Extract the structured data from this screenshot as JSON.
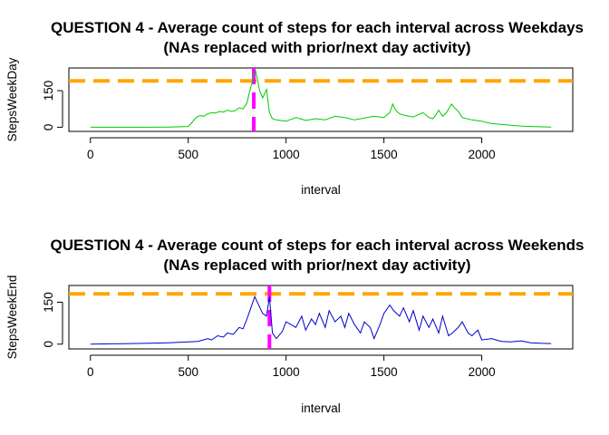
{
  "chart_data": [
    {
      "type": "line",
      "title": "QUESTION 4 - Average count of steps for each interval across Weekdays",
      "subtitle": "(NAs replaced with prior/next day activity)",
      "xlabel": "interval",
      "ylabel": "StepsWeekDay",
      "xlim": [
        -110,
        2465
      ],
      "ylim": [
        -17,
        243
      ],
      "xticks": [
        0,
        500,
        1000,
        1500,
        2000
      ],
      "yticks": [
        0,
        150
      ],
      "xtick_labels": [
        "0",
        "500",
        "1000",
        "1500",
        "2000"
      ],
      "ytick_labels": [
        "0",
        "150"
      ],
      "series_color": "#00cc00",
      "series": [
        {
          "x": [
            0,
            100,
            200,
            300,
            400,
            500,
            520,
            540,
            560,
            580,
            600,
            620,
            640,
            660,
            680,
            700,
            720,
            740,
            760,
            780,
            800,
            815,
            825,
            835,
            845,
            855,
            865,
            880,
            900,
            915,
            930,
            950,
            1000,
            1050,
            1100,
            1150,
            1200,
            1250,
            1300,
            1350,
            1400,
            1450,
            1500,
            1530,
            1545,
            1560,
            1580,
            1600,
            1650,
            1700,
            1730,
            1750,
            1765,
            1780,
            1800,
            1820,
            1845,
            1860,
            1880,
            1900,
            1950,
            2000,
            2050,
            2100,
            2150,
            2200,
            2250,
            2300,
            2355
          ],
          "y": [
            0,
            0,
            0,
            0,
            1,
            3,
            20,
            40,
            48,
            45,
            55,
            60,
            58,
            65,
            62,
            70,
            65,
            68,
            80,
            75,
            100,
            150,
            180,
            215,
            230,
            190,
            150,
            120,
            155,
            60,
            35,
            30,
            25,
            40,
            28,
            35,
            30,
            45,
            40,
            30,
            38,
            45,
            40,
            60,
            95,
            70,
            55,
            50,
            42,
            60,
            40,
            35,
            50,
            70,
            45,
            60,
            95,
            80,
            65,
            40,
            30,
            25,
            15,
            12,
            8,
            5,
            3,
            2,
            1
          ]
        }
      ],
      "annotations": [
        {
          "kind": "hline",
          "y": 190,
          "color": "#ffa500",
          "style": "dashed"
        },
        {
          "kind": "vline",
          "x": 835,
          "color": "#ff00ff",
          "style": "dashed"
        }
      ]
    },
    {
      "type": "line",
      "title": "QUESTION 4 - Average count of steps for each interval across Weekends",
      "subtitle": "(NAs replaced with prior/next day activity)",
      "xlabel": "interval",
      "ylabel": "StepsWeekEnd",
      "xlim": [
        -110,
        2465
      ],
      "ylim": [
        -17,
        210
      ],
      "xticks": [
        0,
        500,
        1000,
        1500,
        2000
      ],
      "yticks": [
        0,
        150
      ],
      "xtick_labels": [
        "0",
        "500",
        "1000",
        "1500",
        "2000"
      ],
      "ytick_labels": [
        "0",
        "150"
      ],
      "series_color": "#0000cc",
      "series": [
        {
          "x": [
            0,
            100,
            200,
            300,
            400,
            500,
            550,
            600,
            620,
            650,
            680,
            700,
            730,
            760,
            780,
            800,
            820,
            840,
            860,
            880,
            900,
            915,
            930,
            950,
            980,
            1000,
            1050,
            1080,
            1100,
            1130,
            1150,
            1170,
            1200,
            1220,
            1250,
            1280,
            1300,
            1320,
            1350,
            1380,
            1400,
            1430,
            1450,
            1480,
            1500,
            1530,
            1550,
            1580,
            1600,
            1630,
            1650,
            1680,
            1700,
            1730,
            1750,
            1780,
            1800,
            1830,
            1850,
            1880,
            1900,
            1930,
            1950,
            1980,
            2000,
            2050,
            2100,
            2150,
            2200,
            2250,
            2300,
            2355
          ],
          "y": [
            0,
            1,
            2,
            3,
            5,
            8,
            10,
            20,
            15,
            30,
            25,
            40,
            35,
            60,
            55,
            90,
            130,
            170,
            140,
            110,
            100,
            170,
            40,
            20,
            45,
            80,
            60,
            100,
            50,
            90,
            70,
            110,
            60,
            120,
            80,
            100,
            60,
            110,
            70,
            40,
            80,
            60,
            20,
            70,
            110,
            140,
            120,
            100,
            130,
            80,
            120,
            50,
            100,
            60,
            90,
            40,
            100,
            30,
            40,
            60,
            80,
            40,
            30,
            50,
            15,
            20,
            10,
            8,
            12,
            5,
            3,
            2
          ]
        }
      ],
      "annotations": [
        {
          "kind": "hline",
          "y": 180,
          "color": "#ffa500",
          "style": "dashed"
        },
        {
          "kind": "vline",
          "x": 915,
          "color": "#ff00ff",
          "style": "dashed"
        }
      ]
    }
  ]
}
